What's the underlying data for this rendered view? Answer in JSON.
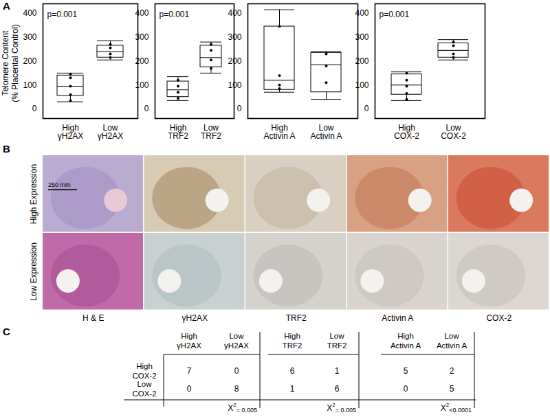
{
  "panel_labels": [
    "A",
    "B",
    "C"
  ],
  "chart_data": [
    {
      "type": "box",
      "ylabel": "Telomere Content\n(% Placental Control)",
      "annotation": "p=0.001",
      "categories": [
        "High\nγH2AX",
        "Low\nγH2AX"
      ],
      "box_stats": [
        {
          "min": 30,
          "q1": 55,
          "median": 95,
          "q3": 140,
          "max": 150
        },
        {
          "min": 205,
          "q1": 215,
          "median": 240,
          "q3": 265,
          "max": 285
        }
      ],
      "points": [
        [
          145,
          130,
          95,
          60,
          35
        ],
        [
          270,
          255,
          230,
          215
        ]
      ],
      "ylim": [
        -40,
        440
      ],
      "yticks": [
        0,
        100,
        200,
        300,
        400
      ]
    },
    {
      "type": "box",
      "annotation": "p=0.001",
      "categories": [
        "High\nTRF2",
        "Low\nTRF2"
      ],
      "box_stats": [
        {
          "min": 35,
          "q1": 50,
          "median": 80,
          "q3": 115,
          "max": 135
        },
        {
          "min": 150,
          "q1": 175,
          "median": 215,
          "q3": 265,
          "max": 280
        }
      ],
      "points": [
        [
          120,
          95,
          70,
          45
        ],
        [
          270,
          245,
          205,
          170
        ]
      ],
      "ylim": [
        -40,
        440
      ],
      "yticks": [
        0,
        100,
        200,
        300,
        400
      ]
    },
    {
      "type": "box",
      "categories": [
        "High\nActivin A",
        "Low\nActivin A"
      ],
      "box_stats": [
        {
          "min": 70,
          "q1": 80,
          "median": 120,
          "q3": 345,
          "max": 415
        },
        {
          "min": 40,
          "q1": 70,
          "median": 185,
          "q3": 235,
          "max": 240
        }
      ],
      "points": [
        [
          345,
          140,
          100,
          85
        ],
        [
          230,
          180,
          110
        ]
      ],
      "ylim": [
        -40,
        440
      ],
      "yticks": [
        0,
        100,
        200,
        300,
        400
      ]
    },
    {
      "type": "box",
      "annotation": "p=0.001",
      "categories": [
        "High\nCOX-2",
        "Low\nCOX-2"
      ],
      "box_stats": [
        {
          "min": 35,
          "q1": 60,
          "median": 100,
          "q3": 145,
          "max": 155
        },
        {
          "min": 205,
          "q1": 215,
          "median": 245,
          "q3": 275,
          "max": 290
        }
      ],
      "points": [
        [
          150,
          120,
          95,
          65,
          40
        ],
        [
          280,
          265,
          230,
          215
        ]
      ],
      "ylim": [
        -40,
        440
      ],
      "yticks": [
        0,
        100,
        200,
        300,
        400
      ]
    }
  ],
  "images": {
    "row_labels": [
      "High Expression",
      "Low Expression"
    ],
    "column_labels": [
      "H & E",
      "γH2AX",
      "TRF2",
      "Activin A",
      "COX-2"
    ],
    "scale_bar": "250 mm"
  },
  "tables": {
    "row_labels": [
      "High\nCOX-2",
      "Low\nCOX-2"
    ],
    "items": [
      {
        "columns": [
          "High\nγH2AX",
          "Low\nγH2AX"
        ],
        "rows": [
          [
            7,
            0
          ],
          [
            0,
            8
          ]
        ],
        "statistic": {
          "symbol": "X",
          "exponent": "2",
          "value": "= 0.005"
        }
      },
      {
        "columns": [
          "High\nTRF2",
          "Low\nTRF2"
        ],
        "rows": [
          [
            6,
            1
          ],
          [
            1,
            6
          ]
        ],
        "statistic": {
          "symbol": "X",
          "exponent": "2",
          "value": "= 0.005"
        }
      },
      {
        "columns": [
          "High\nActivin A",
          "Low\nActivin A"
        ],
        "rows": [
          [
            5,
            2
          ],
          [
            0,
            5
          ]
        ],
        "statistic": {
          "symbol": "X",
          "exponent": "2",
          "value": "<0.0001"
        }
      }
    ]
  }
}
